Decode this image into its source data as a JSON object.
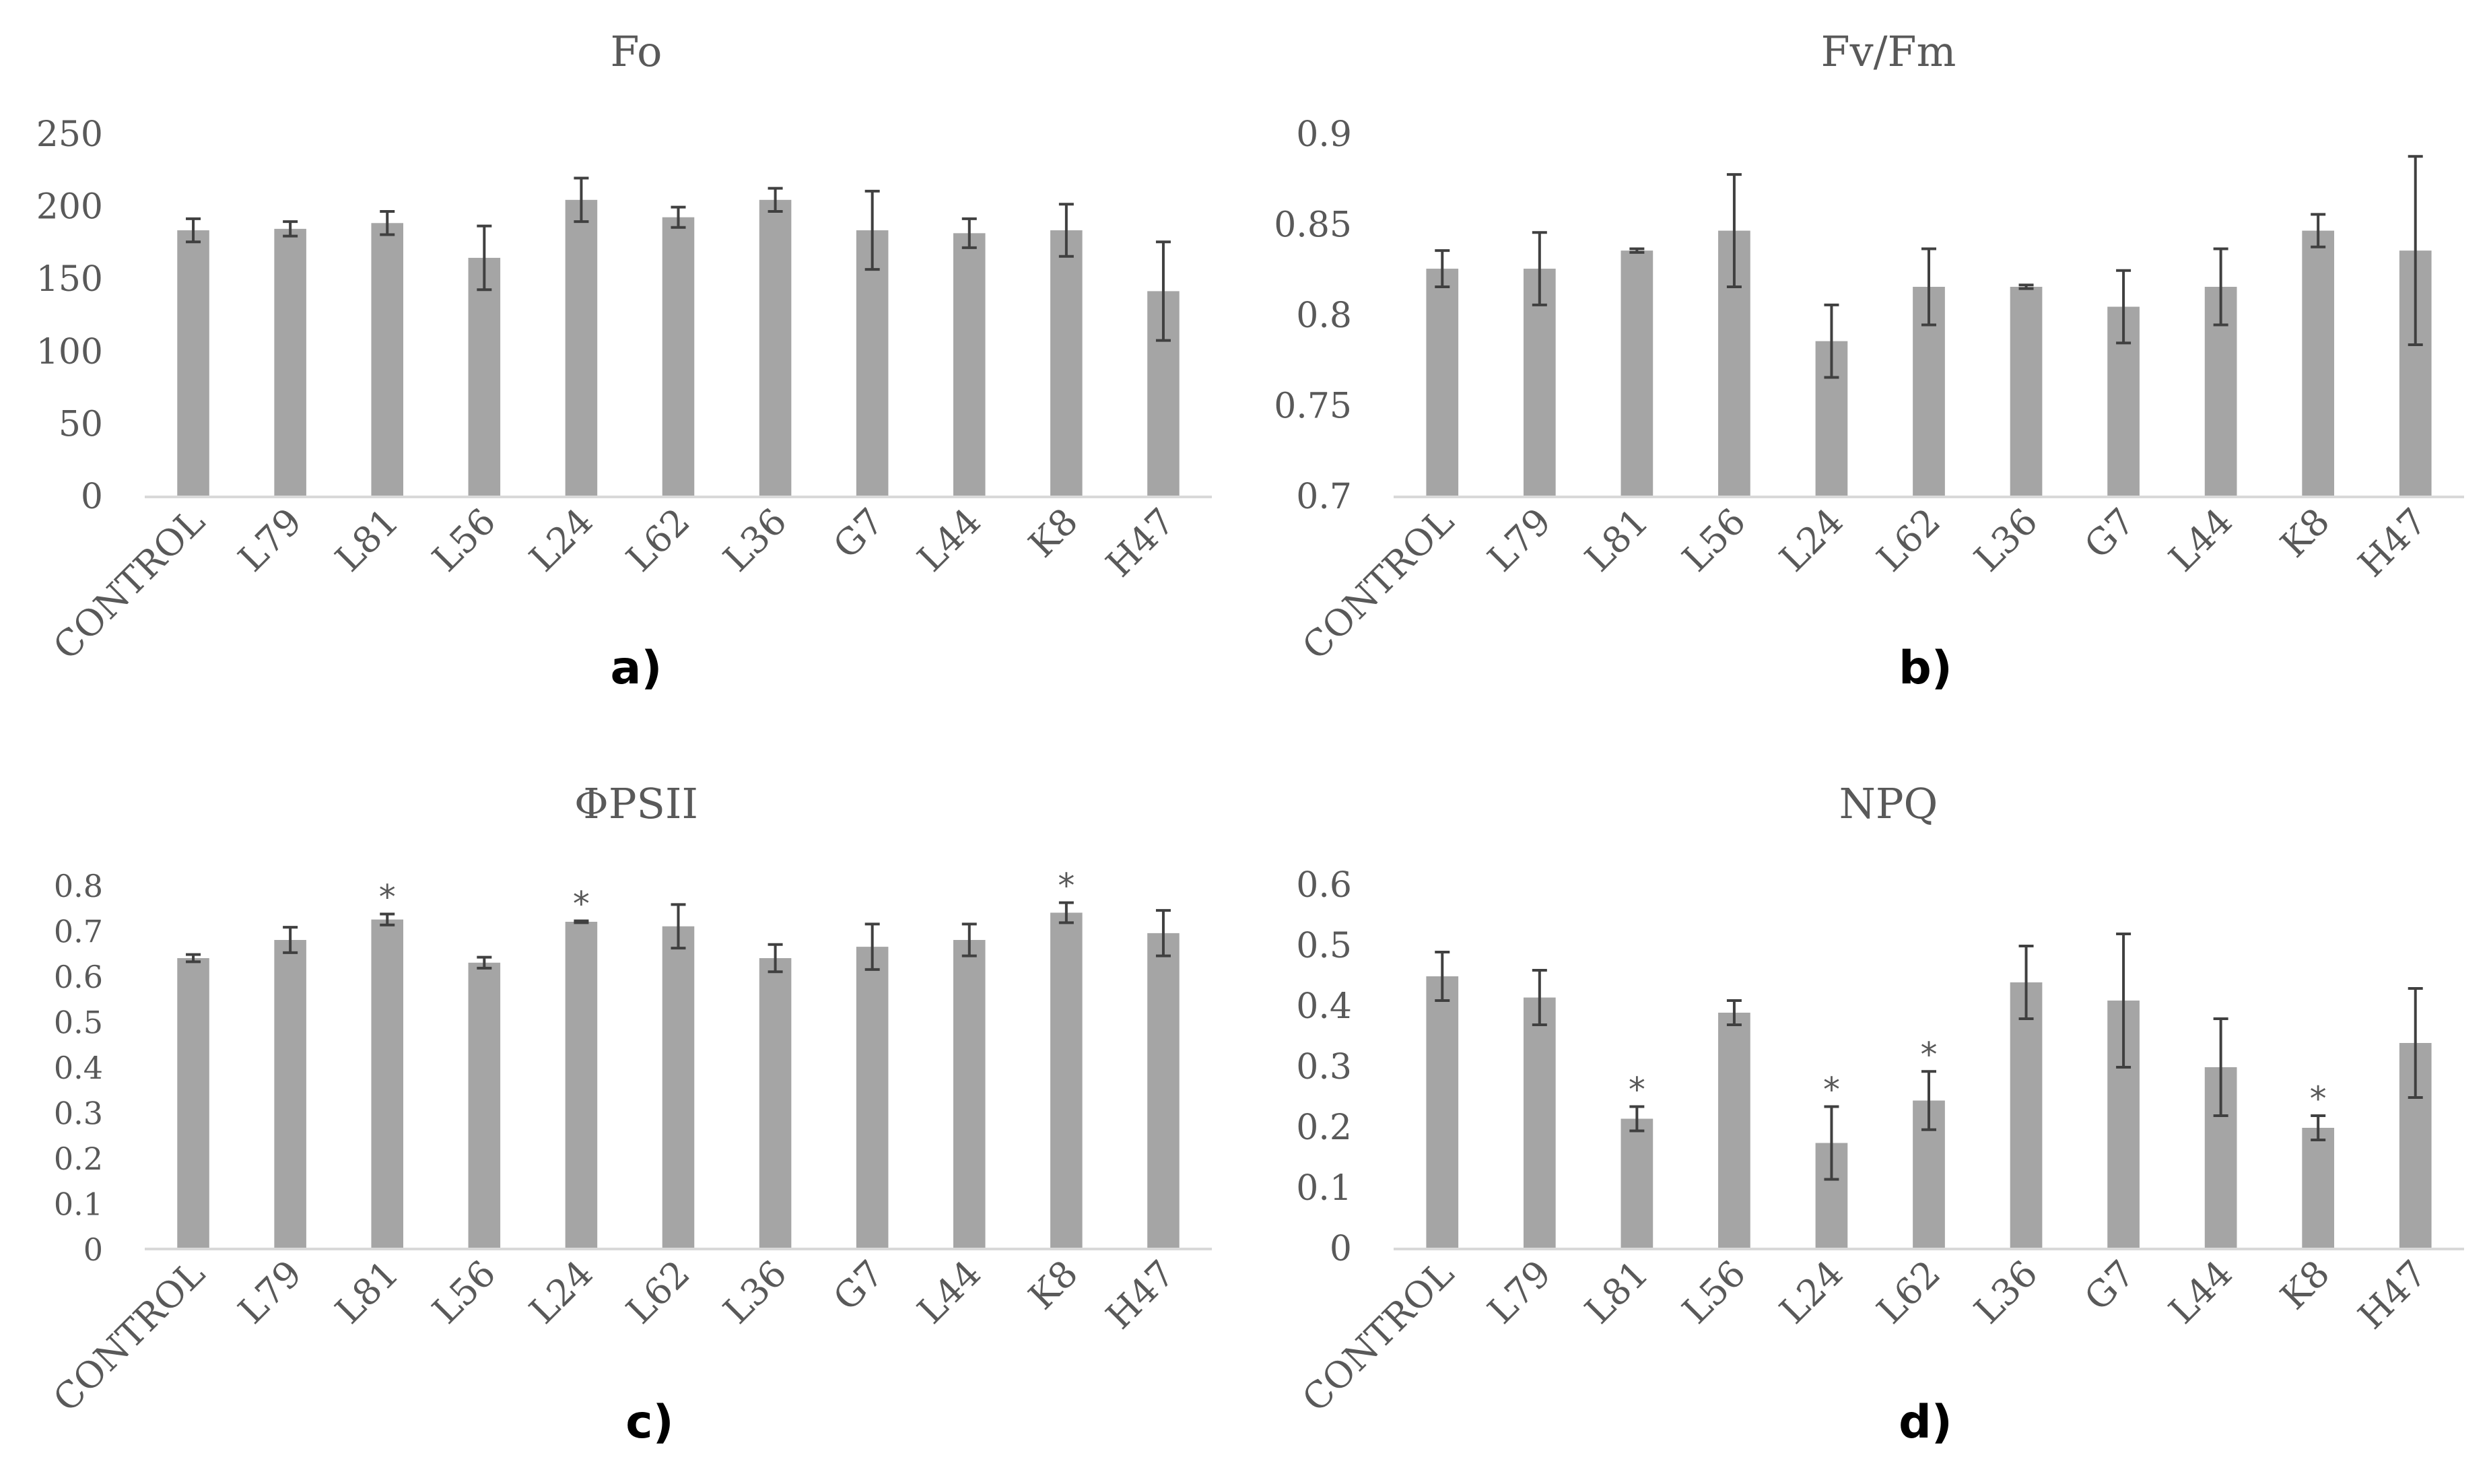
{
  "colors": {
    "bar": "#a5a5a5",
    "error": "#404040",
    "axis": "#d9d9d9",
    "text": "#595959"
  },
  "chart_data": [
    {
      "type": "bar",
      "title": "Fo",
      "panel_label": "a)",
      "categories": [
        "CONTROL",
        "L79",
        "L81",
        "L56",
        "L24",
        "L62",
        "L36",
        "G7",
        "L44",
        "K8",
        "H47"
      ],
      "values": [
        184,
        185,
        189,
        165,
        205,
        193,
        205,
        184,
        182,
        184,
        142
      ],
      "errors": [
        8,
        5,
        8,
        22,
        15,
        7,
        8,
        27,
        10,
        18,
        34
      ],
      "significant": [
        false,
        false,
        false,
        false,
        false,
        false,
        false,
        false,
        false,
        false,
        false
      ],
      "ylim": [
        0,
        250
      ],
      "yticks": [
        "0",
        "50",
        "100",
        "150",
        "200",
        "250"
      ],
      "grid": false
    },
    {
      "type": "bar",
      "title": "Fv/Fm",
      "panel_label": "b)",
      "categories": [
        "CONTROL",
        "L79",
        "L81",
        "L56",
        "L24",
        "L62",
        "L36",
        "G7",
        "L44",
        "K8",
        "H47"
      ],
      "values": [
        0.826,
        0.826,
        0.836,
        0.847,
        0.786,
        0.816,
        0.816,
        0.805,
        0.816,
        0.847,
        0.836
      ],
      "errors": [
        0.01,
        0.02,
        0.001,
        0.031,
        0.02,
        0.021,
        0.001,
        0.02,
        0.021,
        0.009,
        0.052
      ],
      "significant": [
        false,
        false,
        false,
        false,
        false,
        false,
        false,
        false,
        false,
        false,
        false
      ],
      "ylim": [
        0.7,
        0.9
      ],
      "yticks": [
        "0.7",
        "0.75",
        "0.8",
        "0.85",
        "0.9"
      ],
      "grid": false
    },
    {
      "type": "bar",
      "title": "ΦPSII",
      "panel_label": "c)",
      "categories": [
        "CONTROL",
        "L79",
        "L81",
        "L56",
        "L24",
        "L62",
        "L36",
        "G7",
        "L44",
        "K8",
        "H47"
      ],
      "values": [
        0.64,
        0.68,
        0.725,
        0.63,
        0.72,
        0.71,
        0.64,
        0.665,
        0.68,
        0.74,
        0.695
      ],
      "errors": [
        0.008,
        0.028,
        0.012,
        0.012,
        0.002,
        0.048,
        0.03,
        0.05,
        0.035,
        0.022,
        0.05
      ],
      "significant": [
        false,
        false,
        true,
        false,
        true,
        false,
        false,
        false,
        false,
        true,
        false
      ],
      "significance_mark": "*",
      "ylim": [
        0,
        0.8
      ],
      "yticks": [
        "0",
        "0.1",
        "0.2",
        "0.3",
        "0.4",
        "0.5",
        "0.6",
        "0.7",
        "0.8"
      ],
      "grid": false
    },
    {
      "type": "bar",
      "title": "NPQ",
      "panel_label": "d)",
      "categories": [
        "CONTROL",
        "L79",
        "L81",
        "L56",
        "L24",
        "L62",
        "L36",
        "G7",
        "L44",
        "K8",
        "H47"
      ],
      "values": [
        0.45,
        0.415,
        0.215,
        0.39,
        0.175,
        0.245,
        0.44,
        0.41,
        0.3,
        0.2,
        0.34
      ],
      "errors": [
        0.04,
        0.045,
        0.02,
        0.02,
        0.06,
        0.048,
        0.06,
        0.11,
        0.08,
        0.02,
        0.09
      ],
      "significant": [
        false,
        false,
        true,
        false,
        true,
        true,
        false,
        false,
        false,
        true,
        false
      ],
      "significance_mark": "*",
      "ylim": [
        0,
        0.6
      ],
      "yticks": [
        "0",
        "0.1",
        "0.2",
        "0.3",
        "0.4",
        "0.5",
        "0.6"
      ],
      "grid": false
    }
  ]
}
